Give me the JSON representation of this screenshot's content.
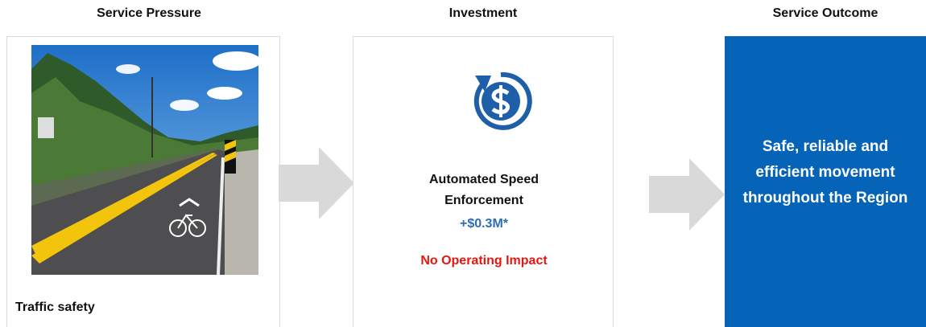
{
  "headers": {
    "pressure": "Service Pressure",
    "investment": "Investment",
    "outcome": "Service Outcome"
  },
  "pressure": {
    "label": "Traffic safety"
  },
  "investment": {
    "title": "Automated Speed Enforcement",
    "amount": "+$0.3M*",
    "impact": "No Operating Impact"
  },
  "outcome": {
    "text": "Safe, reliable and efficient movement throughout the Region"
  }
}
